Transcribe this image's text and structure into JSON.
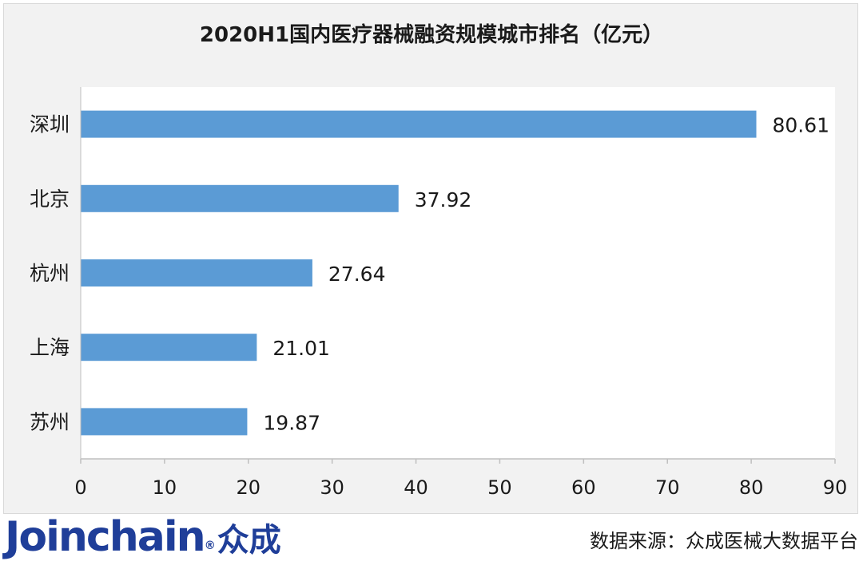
{
  "chart_data": {
    "type": "bar",
    "orientation": "horizontal",
    "title": "2020H1国内医疗器械融资规模城市排名（亿元）",
    "categories": [
      "深圳",
      "北京",
      "杭州",
      "上海",
      "苏州"
    ],
    "values": [
      80.61,
      37.92,
      27.64,
      21.01,
      19.87
    ],
    "data_labels": [
      "80.61",
      "37.92",
      "27.64",
      "21.01",
      "19.87"
    ],
    "xlim": [
      0,
      90
    ],
    "x_ticks": [
      0,
      10,
      20,
      30,
      40,
      50,
      60,
      70,
      80,
      90
    ],
    "grid": false,
    "legend": "none",
    "bar_color": "#5b9bd5"
  },
  "footer": {
    "logo_text": "Joinchain",
    "logo_reg": "®",
    "logo_cn": "众成",
    "source": "数据来源：众成医械大数据平台"
  },
  "colors": {
    "logo": "#1f3e99",
    "plot_background": "#ffffff",
    "frame_background": "#f2f2f2"
  }
}
